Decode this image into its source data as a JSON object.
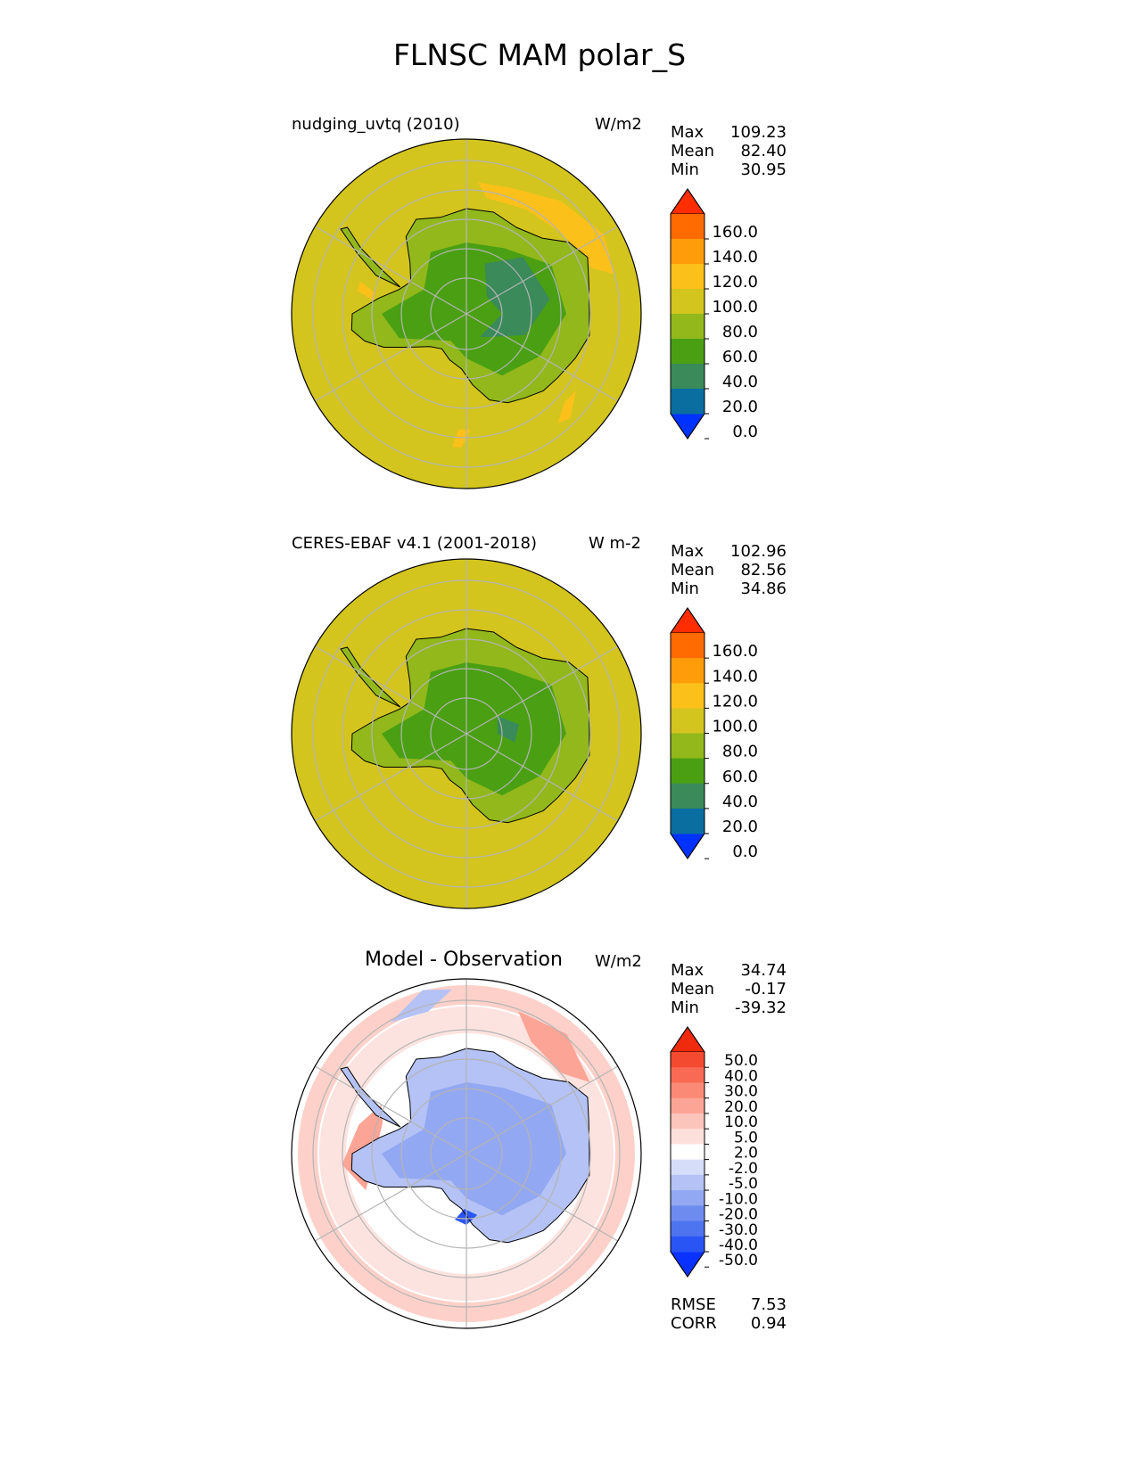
{
  "chart_data": {
    "title": "FLNSC MAM polar_S",
    "panels": [
      {
        "type": "heatmap",
        "projection": "south-polar-stereographic",
        "name": "nudging_uvtq (2010)",
        "units": "W/m2",
        "stats": [
          {
            "label": "Max",
            "value": "109.23"
          },
          {
            "label": "Mean",
            "value": "82.40"
          },
          {
            "label": "Min",
            "value": "30.95"
          }
        ],
        "colorbar": {
          "extend": "both",
          "levels": [
            0,
            20,
            40,
            60,
            80,
            100,
            120,
            140,
            160
          ],
          "tick_labels": [
            "160.0",
            "140.0",
            "120.0",
            "100.0",
            "80.0",
            "60.0",
            "40.0",
            "20.0",
            "0.0"
          ],
          "colors": [
            "#0032ff",
            "#0a6ea0",
            "#3a8a5a",
            "#4aa012",
            "#92b81c",
            "#d3c51e",
            "#fcc01a",
            "#ff9c0a",
            "#ff6b00",
            "#ff2d00"
          ]
        }
      },
      {
        "type": "heatmap",
        "projection": "south-polar-stereographic",
        "name": "CERES-EBAF v4.1 (2001-2018)",
        "units": "W m-2",
        "stats": [
          {
            "label": "Max",
            "value": "102.96"
          },
          {
            "label": "Mean",
            "value": "82.56"
          },
          {
            "label": "Min",
            "value": "34.86"
          }
        ],
        "colorbar": {
          "extend": "both",
          "levels": [
            0,
            20,
            40,
            60,
            80,
            100,
            120,
            140,
            160
          ],
          "tick_labels": [
            "160.0",
            "140.0",
            "120.0",
            "100.0",
            "80.0",
            "60.0",
            "40.0",
            "20.0",
            "0.0"
          ],
          "colors": [
            "#0032ff",
            "#0a6ea0",
            "#3a8a5a",
            "#4aa012",
            "#92b81c",
            "#d3c51e",
            "#fcc01a",
            "#ff9c0a",
            "#ff6b00",
            "#ff2d00"
          ]
        }
      },
      {
        "type": "heatmap",
        "projection": "south-polar-stereographic",
        "name": "Model - Observation",
        "units": "W/m2",
        "stats": [
          {
            "label": "Max",
            "value": "34.74"
          },
          {
            "label": "Mean",
            "value": "-0.17"
          },
          {
            "label": "Min",
            "value": "-39.32"
          }
        ],
        "metrics": [
          {
            "label": "RMSE",
            "value": "7.53"
          },
          {
            "label": "CORR",
            "value": "0.94"
          }
        ],
        "colorbar": {
          "extend": "both",
          "levels": [
            -50,
            -40,
            -30,
            -20,
            -10,
            -5,
            -2,
            2,
            5,
            10,
            20,
            30,
            40,
            50
          ],
          "tick_labels": [
            "50.0",
            "40.0",
            "30.0",
            "20.0",
            "10.0",
            "5.0",
            "2.0",
            "-2.0",
            "-5.0",
            "-10.0",
            "-20.0",
            "-30.0",
            "-40.0",
            "-50.0"
          ],
          "colors": [
            "#0a32ff",
            "#2a55f5",
            "#4f74f0",
            "#6e8cf0",
            "#93a8f2",
            "#b4c2f5",
            "#d6ddf9",
            "#ffffff",
            "#fde0dc",
            "#fcc5bc",
            "#fca596",
            "#fa8a76",
            "#f86a54",
            "#f44a30",
            "#f02a0c"
          ]
        }
      }
    ]
  }
}
